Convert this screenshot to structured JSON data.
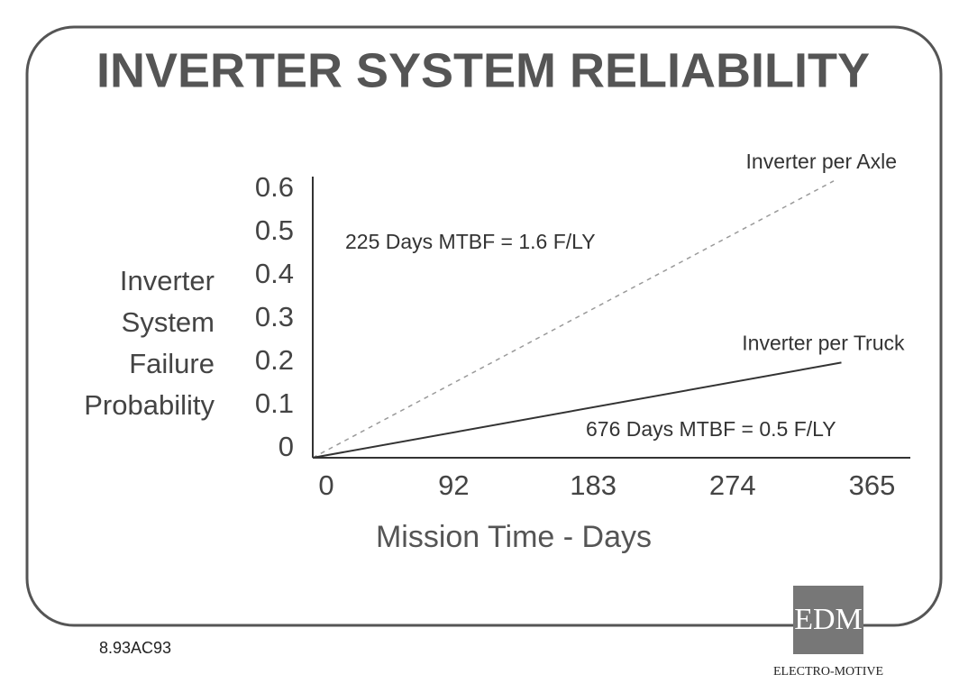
{
  "chart_data": {
    "type": "line",
    "title": "INVERTER SYSTEM RELIABILITY",
    "ylabel_lines": [
      "Inverter",
      "System",
      "Failure",
      "Probability"
    ],
    "xlabel": "Mission Time - Days",
    "xlim": [
      0,
      390
    ],
    "xticks": [
      0,
      92,
      183,
      274,
      365
    ],
    "ylim": [
      0,
      0.65
    ],
    "yticks": [
      0,
      0.1,
      0.2,
      0.3,
      0.4,
      0.5,
      0.6
    ],
    "series": [
      {
        "name": "Inverter per Axle",
        "color": "#9a9a9a",
        "style": "dashed",
        "x": [
          0,
          340
        ],
        "values": [
          0,
          0.64
        ]
      },
      {
        "name": "Inverter per Truck",
        "color": "#333333",
        "style": "solid",
        "x": [
          0,
          345
        ],
        "values": [
          0,
          0.22
        ]
      }
    ],
    "annotations": [
      "225 Days MTBF = 1.6 F/LY",
      "676 Days MTBF = 0.5 F/LY"
    ]
  },
  "footer": {
    "code": "8.93AC93",
    "logo": "EDM",
    "company": "ELECTRO-MOTIVE"
  }
}
